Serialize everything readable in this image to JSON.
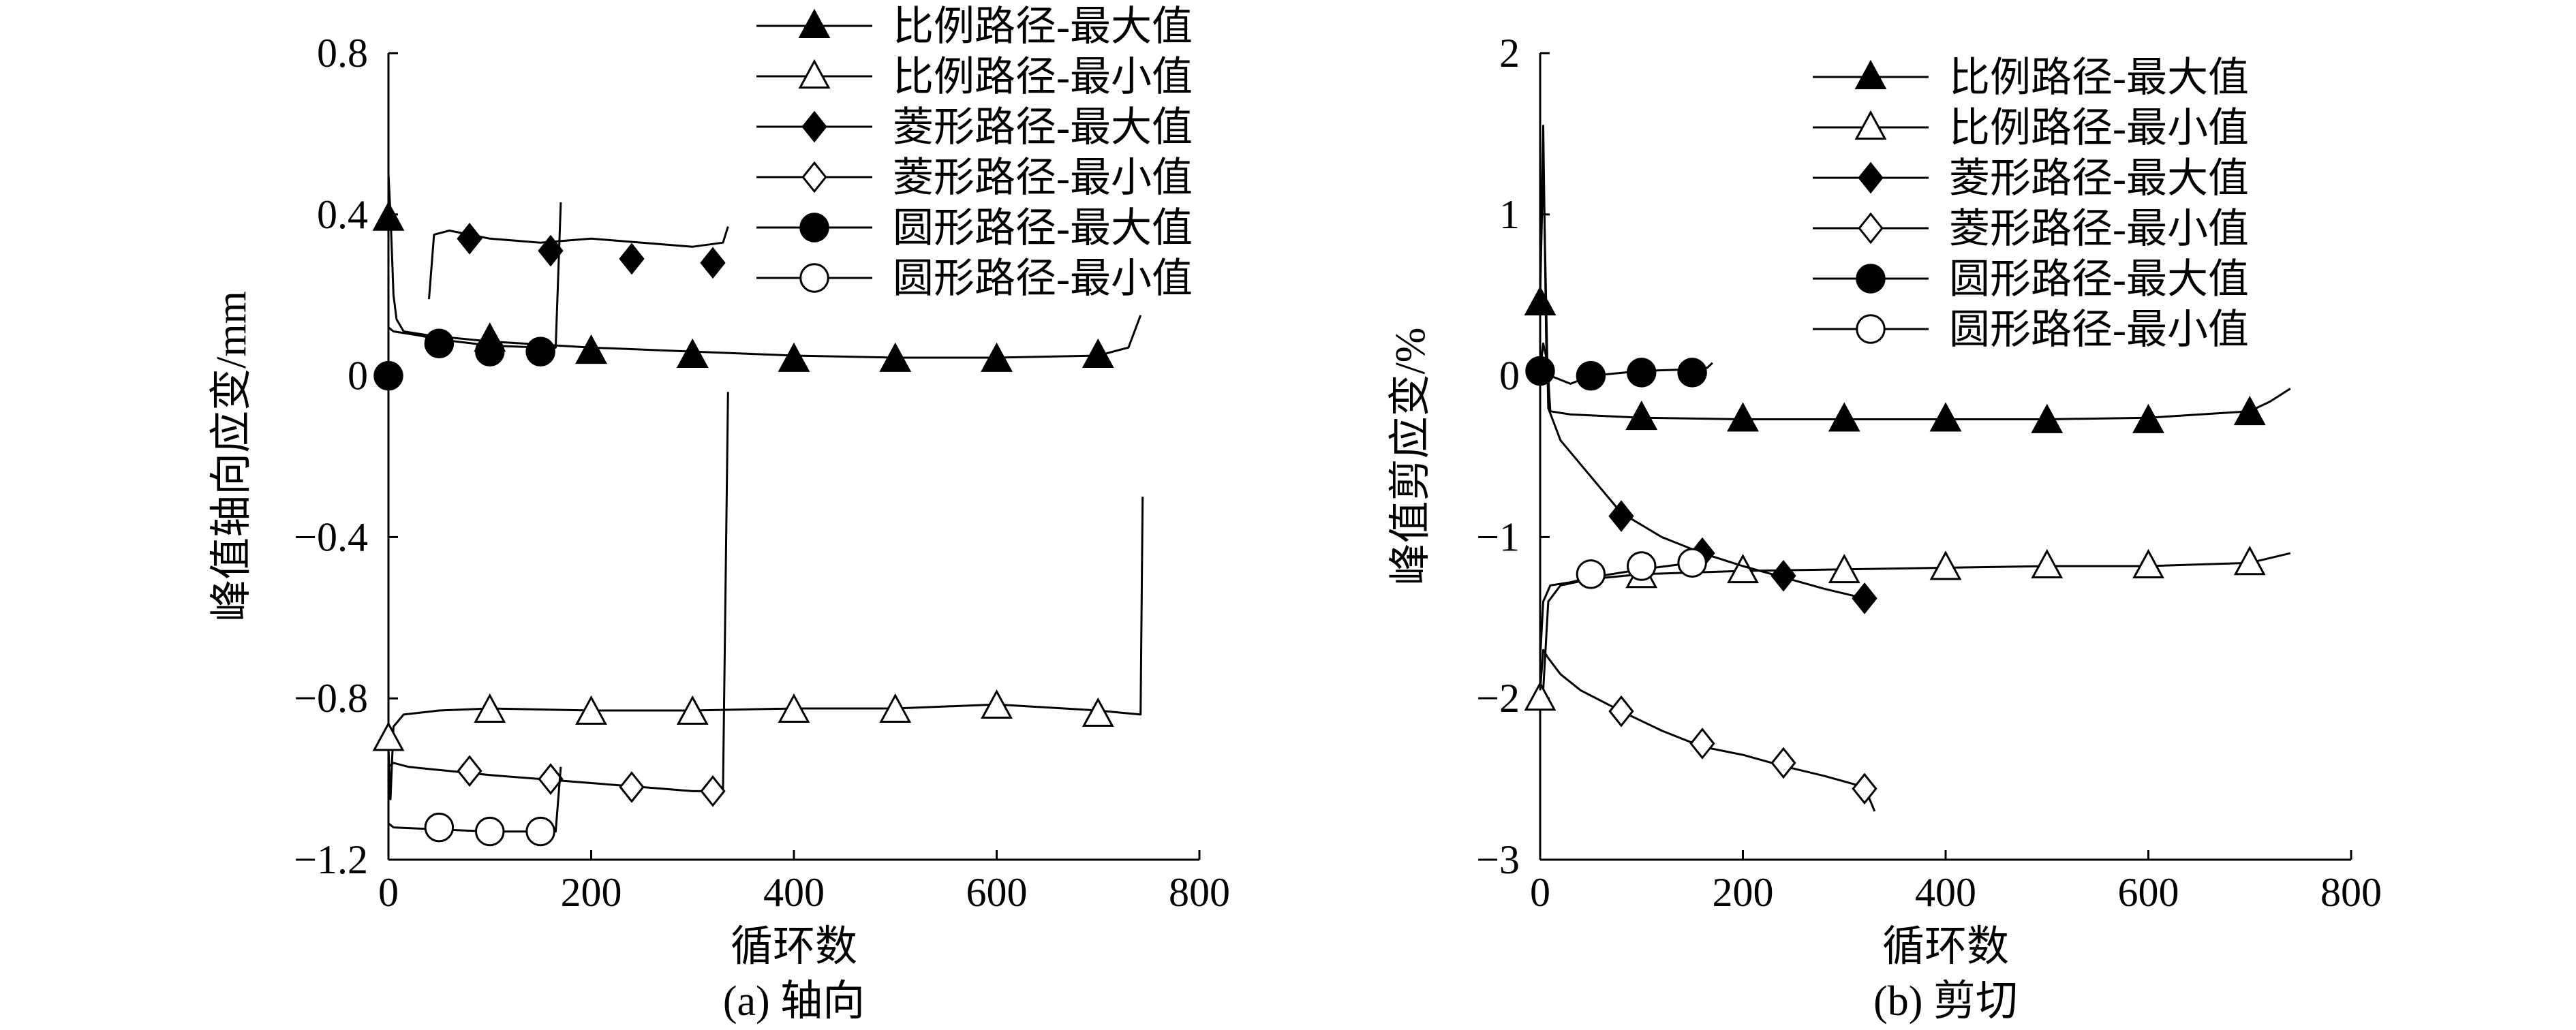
{
  "chart_data": [
    {
      "type": "line",
      "caption": "(a) 轴向",
      "xlabel": "循环数",
      "ylabel": "峰值轴向应变/mm",
      "xlim": [
        0,
        800
      ],
      "ylim": [
        -1.2,
        0.8
      ],
      "xticks": [
        0,
        200,
        400,
        600,
        800
      ],
      "yticks": [
        -1.2,
        -0.8,
        -0.4,
        0,
        0.4,
        0.8
      ],
      "xtick_labels": [
        "0",
        "200",
        "400",
        "600",
        "800"
      ],
      "ytick_labels": [
        "−1.2",
        "−0.8",
        "−0.4",
        "0",
        "0.4",
        "0.8"
      ],
      "legend_position": "top-right",
      "series": [
        {
          "name": "比例路径-最大值",
          "marker": "triangle",
          "filled": true,
          "x": [
            0,
            2,
            5,
            8,
            15,
            40,
            100,
            200,
            300,
            400,
            500,
            600,
            700,
            730,
            742
          ],
          "y": [
            0.5,
            0.4,
            0.2,
            0.14,
            0.11,
            0.1,
            0.085,
            0.07,
            0.06,
            0.05,
            0.045,
            0.045,
            0.05,
            0.07,
            0.15
          ],
          "marker_x": [
            0,
            100,
            200,
            300,
            400,
            500,
            600,
            700
          ],
          "marker_y": [
            0.39,
            0.09,
            0.06,
            0.05,
            0.04,
            0.04,
            0.04,
            0.05
          ]
        },
        {
          "name": "比例路径-最小值",
          "marker": "triangle",
          "filled": false,
          "x": [
            0,
            2,
            5,
            15,
            50,
            100,
            200,
            300,
            400,
            500,
            600,
            700,
            742,
            744
          ],
          "y": [
            -0.92,
            -1.05,
            -0.87,
            -0.84,
            -0.83,
            -0.825,
            -0.83,
            -0.83,
            -0.825,
            -0.825,
            -0.815,
            -0.83,
            -0.84,
            -0.3
          ],
          "marker_x": [
            0,
            100,
            200,
            300,
            400,
            500,
            600,
            700
          ],
          "marker_y": [
            -0.9,
            -0.83,
            -0.835,
            -0.835,
            -0.83,
            -0.83,
            -0.82,
            -0.84
          ]
        },
        {
          "name": "菱形路径-最大值",
          "marker": "diamond",
          "filled": true,
          "x": [
            40,
            45,
            60,
            80,
            100,
            150,
            200,
            250,
            300,
            330,
            335
          ],
          "y": [
            0.19,
            0.35,
            0.36,
            0.35,
            0.34,
            0.33,
            0.34,
            0.33,
            0.32,
            0.33,
            0.37
          ],
          "marker_x": [
            80,
            160,
            240,
            320
          ],
          "marker_y": [
            0.34,
            0.31,
            0.29,
            0.28
          ]
        },
        {
          "name": "菱形路径-最小值",
          "marker": "diamond",
          "filled": false,
          "x": [
            0,
            5,
            20,
            60,
            100,
            150,
            200,
            250,
            300,
            330,
            335
          ],
          "y": [
            -0.97,
            -0.96,
            -0.97,
            -0.98,
            -0.99,
            -1.0,
            -1.01,
            -1.02,
            -1.03,
            -1.03,
            -0.04
          ],
          "marker_x": [
            80,
            160,
            240,
            320
          ],
          "marker_y": [
            -0.98,
            -1.0,
            -1.02,
            -1.03
          ]
        },
        {
          "name": "圆形路径-最大值",
          "marker": "circle",
          "filled": true,
          "x": [
            0,
            5,
            30,
            50,
            100,
            150,
            165,
            170
          ],
          "y": [
            0.12,
            0.11,
            0.1,
            0.09,
            0.075,
            0.07,
            0.07,
            0.43
          ],
          "marker_x": [
            0,
            50,
            100,
            150
          ],
          "marker_y": [
            0.0,
            0.08,
            0.06,
            0.06
          ]
        },
        {
          "name": "圆形路径-最小值",
          "marker": "circle",
          "filled": false,
          "x": [
            0,
            5,
            50,
            100,
            150,
            165,
            170
          ],
          "y": [
            -1.11,
            -1.12,
            -1.125,
            -1.13,
            -1.13,
            -1.13,
            -0.97
          ],
          "marker_x": [
            50,
            100,
            150
          ],
          "marker_y": [
            -1.12,
            -1.13,
            -1.13
          ]
        }
      ]
    },
    {
      "type": "line",
      "caption": "(b) 剪切",
      "xlabel": "循环数",
      "ylabel": "峰值剪应变/%",
      "xlim": [
        0,
        800
      ],
      "ylim": [
        -3,
        2
      ],
      "xticks": [
        0,
        200,
        400,
        600,
        800
      ],
      "yticks": [
        -3,
        -2,
        -1,
        0,
        1,
        2
      ],
      "xtick_labels": [
        "0",
        "200",
        "400",
        "600",
        "800"
      ],
      "ytick_labels": [
        "−3",
        "−2",
        "−1",
        "0",
        "1",
        "2"
      ],
      "legend_position": "top-right",
      "series": [
        {
          "name": "比例路径-最大值",
          "marker": "triangle",
          "filled": true,
          "x": [
            0,
            3,
            6,
            10,
            30,
            100,
            200,
            300,
            400,
            500,
            600,
            700,
            720,
            740
          ],
          "y": [
            0.5,
            1.55,
            0.2,
            -0.22,
            -0.24,
            -0.26,
            -0.27,
            -0.27,
            -0.27,
            -0.27,
            -0.26,
            -0.22,
            -0.16,
            -0.08
          ],
          "marker_x": [
            0,
            100,
            200,
            300,
            400,
            500,
            600,
            700
          ],
          "marker_y": [
            0.45,
            -0.26,
            -0.27,
            -0.27,
            -0.27,
            -0.28,
            -0.28,
            -0.23
          ]
        },
        {
          "name": "比例路径-最小值",
          "marker": "triangle",
          "filled": false,
          "x": [
            0,
            3,
            8,
            20,
            50,
            100,
            200,
            300,
            400,
            500,
            600,
            700,
            720,
            740
          ],
          "y": [
            -2.0,
            -1.95,
            -1.4,
            -1.3,
            -1.26,
            -1.23,
            -1.21,
            -1.2,
            -1.19,
            -1.18,
            -1.18,
            -1.16,
            -1.13,
            -1.1
          ],
          "marker_x": [
            0,
            100,
            200,
            300,
            400,
            500,
            600,
            700
          ],
          "marker_y": [
            -2.0,
            -1.24,
            -1.21,
            -1.21,
            -1.19,
            -1.18,
            -1.18,
            -1.16
          ]
        },
        {
          "name": "菱形路径-最大值",
          "marker": "diamond",
          "filled": true,
          "x": [
            0,
            3,
            8,
            20,
            40,
            80,
            120,
            160,
            200,
            240,
            280,
            320,
            330
          ],
          "y": [
            0.5,
            1.35,
            -0.2,
            -0.4,
            -0.55,
            -0.85,
            -1.0,
            -1.1,
            -1.18,
            -1.25,
            -1.32,
            -1.38,
            -1.4
          ],
          "marker_x": [
            80,
            160,
            240,
            320
          ],
          "marker_y": [
            -0.87,
            -1.1,
            -1.24,
            -1.38
          ]
        },
        {
          "name": "菱形路径-最小值",
          "marker": "diamond",
          "filled": false,
          "x": [
            0,
            3,
            8,
            20,
            40,
            80,
            120,
            160,
            200,
            240,
            280,
            320,
            330
          ],
          "y": [
            -1.95,
            -1.7,
            -1.75,
            -1.85,
            -1.95,
            -2.08,
            -2.2,
            -2.3,
            -2.35,
            -2.42,
            -2.48,
            -2.55,
            -2.7
          ],
          "marker_x": [
            80,
            160,
            240,
            320
          ],
          "marker_y": [
            -2.08,
            -2.28,
            -2.4,
            -2.56
          ]
        },
        {
          "name": "圆形路径-最大值",
          "marker": "circle",
          "filled": true,
          "x": [
            0,
            3,
            10,
            30,
            50,
            100,
            150,
            165,
            170
          ],
          "y": [
            0.03,
            0.2,
            0.0,
            -0.05,
            0.0,
            0.03,
            0.04,
            0.05,
            0.08
          ],
          "marker_x": [
            0,
            50,
            100,
            150
          ],
          "marker_y": [
            0.03,
            0.0,
            0.02,
            0.02
          ]
        },
        {
          "name": "圆形路径-最小值",
          "marker": "circle",
          "filled": false,
          "x": [
            0,
            3,
            10,
            30,
            50,
            100,
            150,
            165
          ],
          "y": [
            -1.75,
            -1.4,
            -1.3,
            -1.28,
            -1.25,
            -1.2,
            -1.16,
            -1.15
          ],
          "marker_x": [
            50,
            100,
            150
          ],
          "marker_y": [
            -1.23,
            -1.18,
            -1.16
          ]
        }
      ]
    }
  ]
}
